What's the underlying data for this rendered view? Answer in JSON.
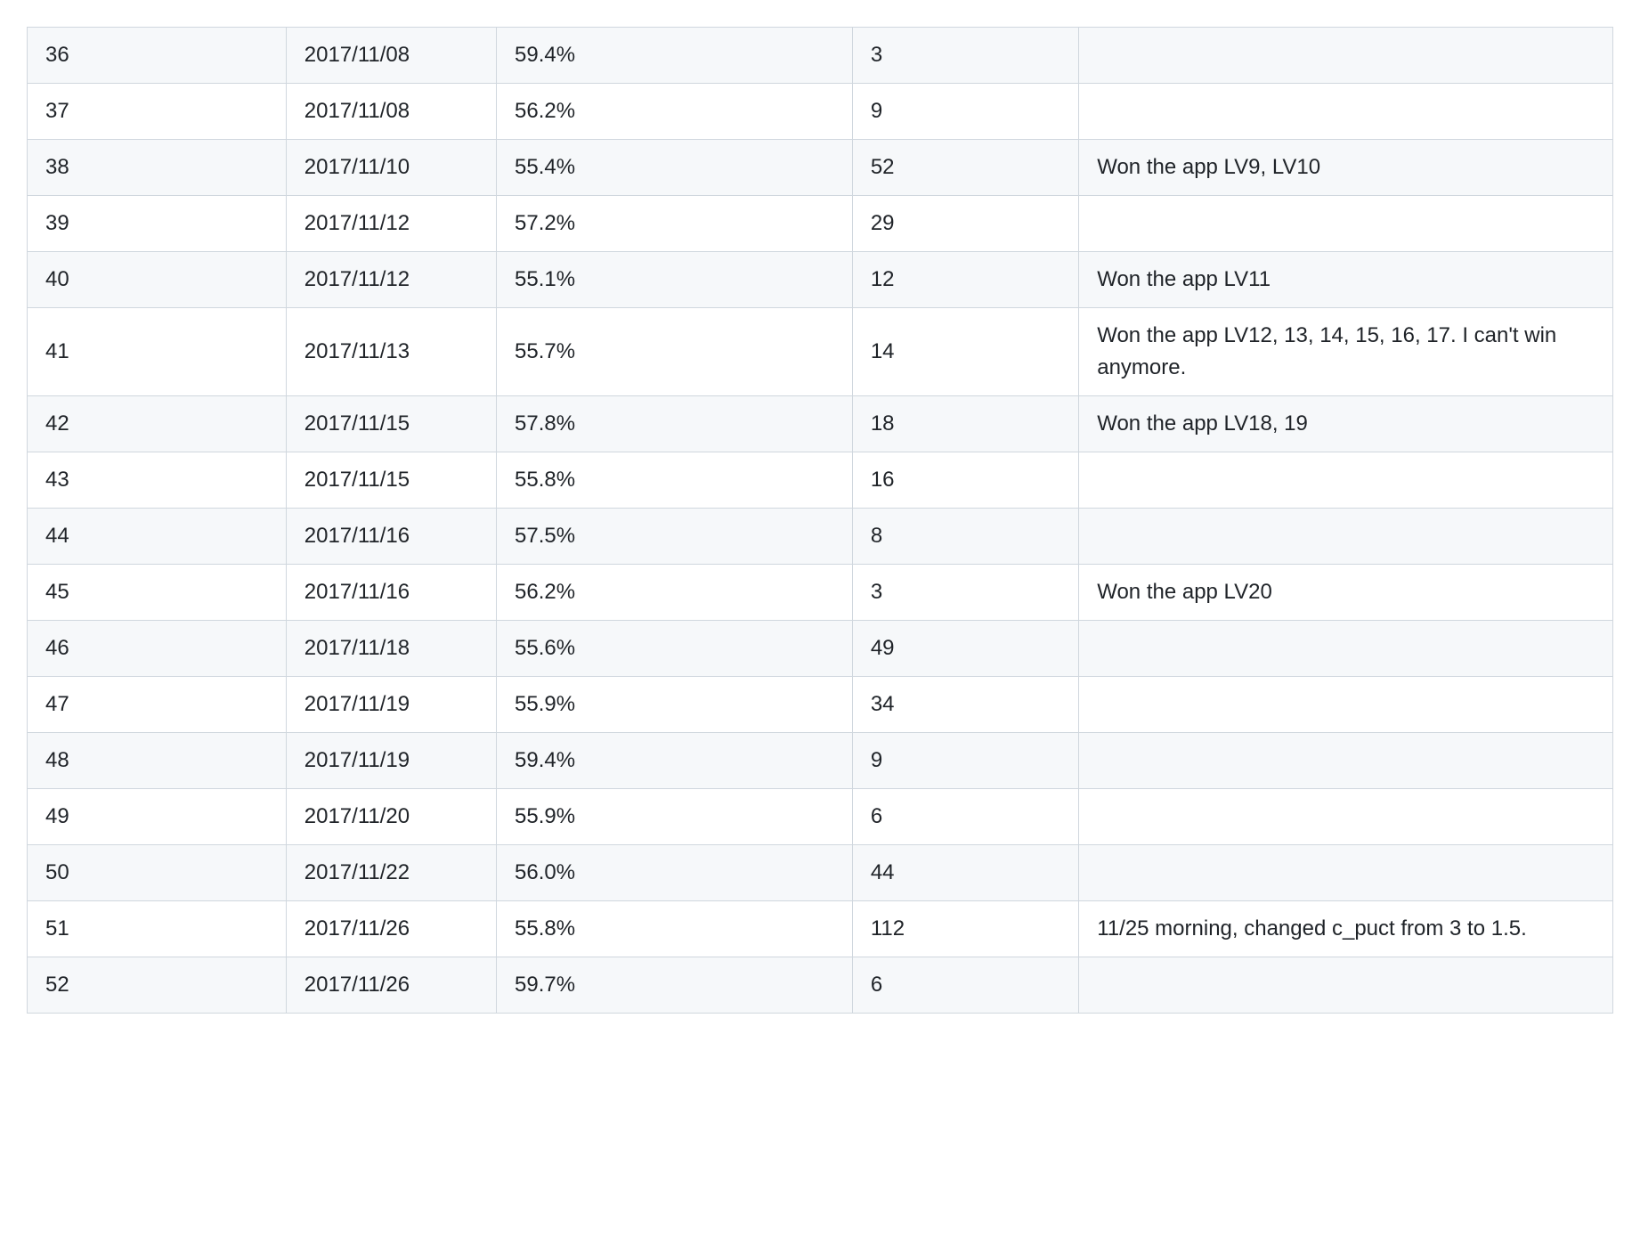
{
  "table": {
    "type": "table",
    "background_colors": {
      "even": "#f6f8fa",
      "odd": "#ffffff"
    },
    "border_color": "#d0d7de",
    "text_color": "#1f2328",
    "font_size_pt": 18,
    "column_widths_pct": [
      16,
      13,
      22,
      14,
      33
    ],
    "rows": [
      {
        "id": "36",
        "date": "2017/11/08",
        "pct": "59.4%",
        "count": "3",
        "note": ""
      },
      {
        "id": "37",
        "date": "2017/11/08",
        "pct": "56.2%",
        "count": "9",
        "note": ""
      },
      {
        "id": "38",
        "date": "2017/11/10",
        "pct": "55.4%",
        "count": "52",
        "note": "Won the app LV9, LV10"
      },
      {
        "id": "39",
        "date": "2017/11/12",
        "pct": "57.2%",
        "count": "29",
        "note": ""
      },
      {
        "id": "40",
        "date": "2017/11/12",
        "pct": "55.1%",
        "count": "12",
        "note": "Won the app LV11"
      },
      {
        "id": "41",
        "date": "2017/11/13",
        "pct": "55.7%",
        "count": "14",
        "note": "Won the app LV12, 13, 14, 15, 16, 17. I can't win anymore."
      },
      {
        "id": "42",
        "date": "2017/11/15",
        "pct": "57.8%",
        "count": "18",
        "note": "Won the app LV18, 19"
      },
      {
        "id": "43",
        "date": "2017/11/15",
        "pct": "55.8%",
        "count": "16",
        "note": ""
      },
      {
        "id": "44",
        "date": "2017/11/16",
        "pct": "57.5%",
        "count": "8",
        "note": ""
      },
      {
        "id": "45",
        "date": "2017/11/16",
        "pct": "56.2%",
        "count": "3",
        "note": "Won the app LV20"
      },
      {
        "id": "46",
        "date": "2017/11/18",
        "pct": "55.6%",
        "count": "49",
        "note": ""
      },
      {
        "id": "47",
        "date": "2017/11/19",
        "pct": "55.9%",
        "count": "34",
        "note": ""
      },
      {
        "id": "48",
        "date": "2017/11/19",
        "pct": "59.4%",
        "count": "9",
        "note": ""
      },
      {
        "id": "49",
        "date": "2017/11/20",
        "pct": "55.9%",
        "count": "6",
        "note": ""
      },
      {
        "id": "50",
        "date": "2017/11/22",
        "pct": "56.0%",
        "count": "44",
        "note": ""
      },
      {
        "id": "51",
        "date": "2017/11/26",
        "pct": "55.8%",
        "count": "112",
        "note": "11/25 morning, changed c_puct from 3 to 1.5."
      },
      {
        "id": "52",
        "date": "2017/11/26",
        "pct": "59.7%",
        "count": "6",
        "note": ""
      }
    ]
  }
}
